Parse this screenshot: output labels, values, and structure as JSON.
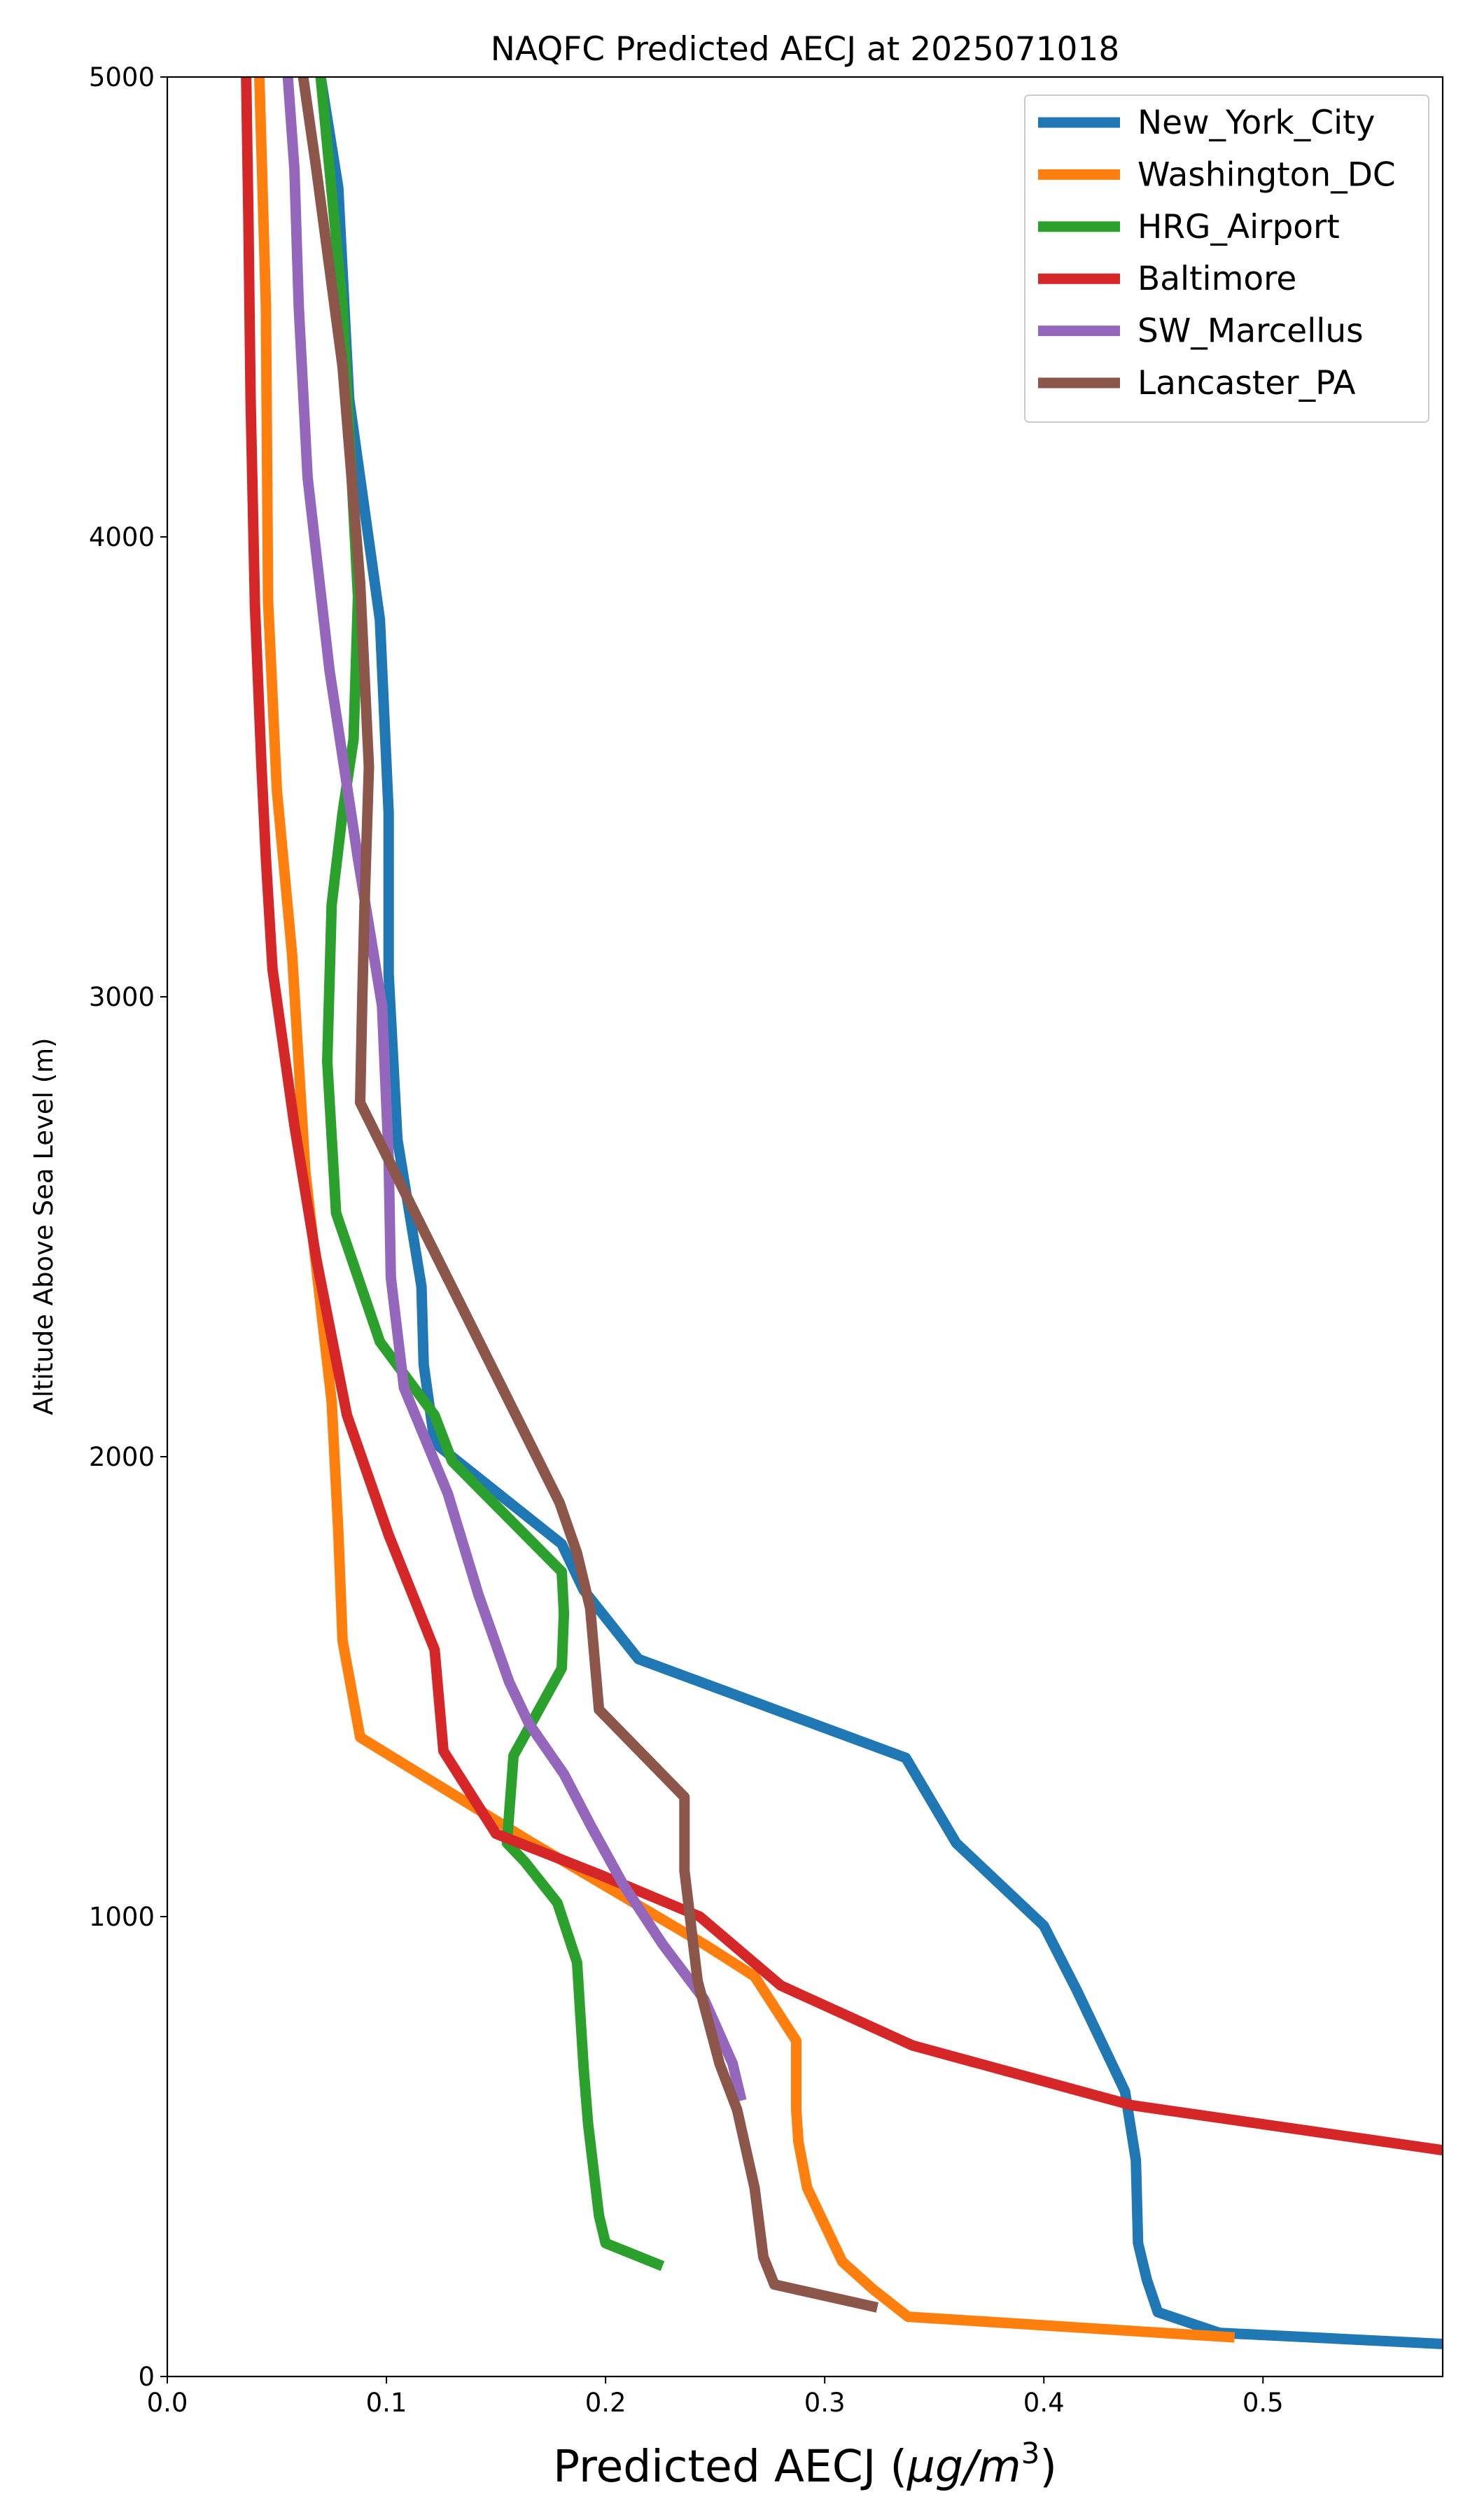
{
  "chart_data": {
    "type": "line",
    "title": "NAQFC Predicted AECJ at 2025071018",
    "xlabel": "Predicted AECJ (μg/m³)",
    "xlabel_main": "Predicted AECJ (",
    "xlabel_mu": "μg/m",
    "xlabel_sup": "3",
    "xlabel_close": ")",
    "ylabel": "Altitude Above Sea Level (m)",
    "xlim": [
      0,
      0.582
    ],
    "ylim": [
      0,
      5000
    ],
    "xticks": [
      0.0,
      0.1,
      0.2,
      0.3,
      0.4,
      0.5
    ],
    "xtick_labels": [
      "0.0",
      "0.1",
      "0.2",
      "0.3",
      "0.4",
      "0.5"
    ],
    "yticks": [
      0,
      1000,
      2000,
      3000,
      4000,
      5000
    ],
    "ytick_labels": [
      "0",
      "1000",
      "2000",
      "3000",
      "4000",
      "5000"
    ],
    "grid": false,
    "legend_position": "top-right",
    "series": [
      {
        "name": "New_York_City",
        "color": "#1f77b4",
        "points": [
          [
            0.585,
            70
          ],
          [
            0.48,
            95
          ],
          [
            0.452,
            140
          ],
          [
            0.447,
            210
          ],
          [
            0.443,
            290
          ],
          [
            0.442,
            470
          ],
          [
            0.437,
            620
          ],
          [
            0.43,
            690
          ],
          [
            0.415,
            840
          ],
          [
            0.4,
            980
          ],
          [
            0.36,
            1160
          ],
          [
            0.337,
            1345
          ],
          [
            0.215,
            1560
          ],
          [
            0.19,
            1710
          ],
          [
            0.18,
            1810
          ],
          [
            0.122,
            2030
          ],
          [
            0.117,
            2200
          ],
          [
            0.116,
            2370
          ],
          [
            0.105,
            2690
          ],
          [
            0.101,
            3050
          ],
          [
            0.101,
            3400
          ],
          [
            0.097,
            3820
          ],
          [
            0.083,
            4300
          ],
          [
            0.078,
            4760
          ],
          [
            0.07,
            5000
          ]
        ]
      },
      {
        "name": "Washington_DC",
        "color": "#ff7f0e",
        "points": [
          [
            0.487,
            85
          ],
          [
            0.338,
            130
          ],
          [
            0.322,
            190
          ],
          [
            0.308,
            250
          ],
          [
            0.3,
            330
          ],
          [
            0.292,
            410
          ],
          [
            0.288,
            510
          ],
          [
            0.287,
            580
          ],
          [
            0.287,
            730
          ],
          [
            0.268,
            870
          ],
          [
            0.245,
            940
          ],
          [
            0.165,
            1165
          ],
          [
            0.088,
            1390
          ],
          [
            0.08,
            1600
          ],
          [
            0.078,
            1840
          ],
          [
            0.075,
            2120
          ],
          [
            0.069,
            2370
          ],
          [
            0.063,
            2620
          ],
          [
            0.057,
            3090
          ],
          [
            0.05,
            3450
          ],
          [
            0.046,
            3860
          ],
          [
            0.045,
            4500
          ],
          [
            0.042,
            5000
          ]
        ]
      },
      {
        "name": "HRG_Airport",
        "color": "#2ca02c",
        "points": [
          [
            0.226,
            240
          ],
          [
            0.2,
            290
          ],
          [
            0.197,
            350
          ],
          [
            0.192,
            550
          ],
          [
            0.19,
            670
          ],
          [
            0.187,
            900
          ],
          [
            0.178,
            1030
          ],
          [
            0.163,
            1120
          ],
          [
            0.155,
            1160
          ],
          [
            0.158,
            1350
          ],
          [
            0.18,
            1540
          ],
          [
            0.181,
            1660
          ],
          [
            0.18,
            1750
          ],
          [
            0.13,
            1990
          ],
          [
            0.122,
            2090
          ],
          [
            0.097,
            2250
          ],
          [
            0.077,
            2530
          ],
          [
            0.073,
            2860
          ],
          [
            0.075,
            3200
          ],
          [
            0.08,
            3400
          ],
          [
            0.085,
            3560
          ],
          [
            0.087,
            3870
          ],
          [
            0.08,
            4500
          ],
          [
            0.074,
            4800
          ],
          [
            0.07,
            5000
          ]
        ]
      },
      {
        "name": "Baltimore",
        "color": "#d62728",
        "points": [
          [
            0.585,
            490
          ],
          [
            0.44,
            590
          ],
          [
            0.34,
            720
          ],
          [
            0.28,
            850
          ],
          [
            0.243,
            1000
          ],
          [
            0.198,
            1090
          ],
          [
            0.15,
            1180
          ],
          [
            0.126,
            1360
          ],
          [
            0.122,
            1580
          ],
          [
            0.101,
            1830
          ],
          [
            0.082,
            2090
          ],
          [
            0.068,
            2430
          ],
          [
            0.058,
            2720
          ],
          [
            0.048,
            3060
          ],
          [
            0.045,
            3300
          ],
          [
            0.043,
            3500
          ],
          [
            0.04,
            3850
          ],
          [
            0.038,
            4300
          ],
          [
            0.037,
            4700
          ],
          [
            0.036,
            5000
          ]
        ]
      },
      {
        "name": "SW_Marcellus",
        "color": "#9467bd",
        "points": [
          [
            0.262,
            600
          ],
          [
            0.258,
            680
          ],
          [
            0.245,
            820
          ],
          [
            0.226,
            940
          ],
          [
            0.208,
            1070
          ],
          [
            0.193,
            1200
          ],
          [
            0.181,
            1310
          ],
          [
            0.165,
            1420
          ],
          [
            0.156,
            1510
          ],
          [
            0.142,
            1700
          ],
          [
            0.128,
            1920
          ],
          [
            0.108,
            2150
          ],
          [
            0.102,
            2390
          ],
          [
            0.101,
            2650
          ],
          [
            0.098,
            2980
          ],
          [
            0.087,
            3300
          ],
          [
            0.074,
            3710
          ],
          [
            0.064,
            4130
          ],
          [
            0.06,
            4500
          ],
          [
            0.058,
            4800
          ],
          [
            0.055,
            5000
          ]
        ]
      },
      {
        "name": "Lancaster_PA",
        "color": "#8c564b",
        "points": [
          [
            0.324,
            150
          ],
          [
            0.277,
            200
          ],
          [
            0.272,
            260
          ],
          [
            0.268,
            410
          ],
          [
            0.26,
            580
          ],
          [
            0.252,
            680
          ],
          [
            0.242,
            860
          ],
          [
            0.236,
            1100
          ],
          [
            0.236,
            1260
          ],
          [
            0.197,
            1450
          ],
          [
            0.193,
            1670
          ],
          [
            0.187,
            1790
          ],
          [
            0.179,
            1900
          ],
          [
            0.113,
            2530
          ],
          [
            0.088,
            2770
          ],
          [
            0.089,
            3000
          ],
          [
            0.09,
            3200
          ],
          [
            0.092,
            3500
          ],
          [
            0.088,
            3900
          ],
          [
            0.08,
            4370
          ],
          [
            0.068,
            4800
          ],
          [
            0.062,
            5000
          ]
        ]
      }
    ]
  }
}
